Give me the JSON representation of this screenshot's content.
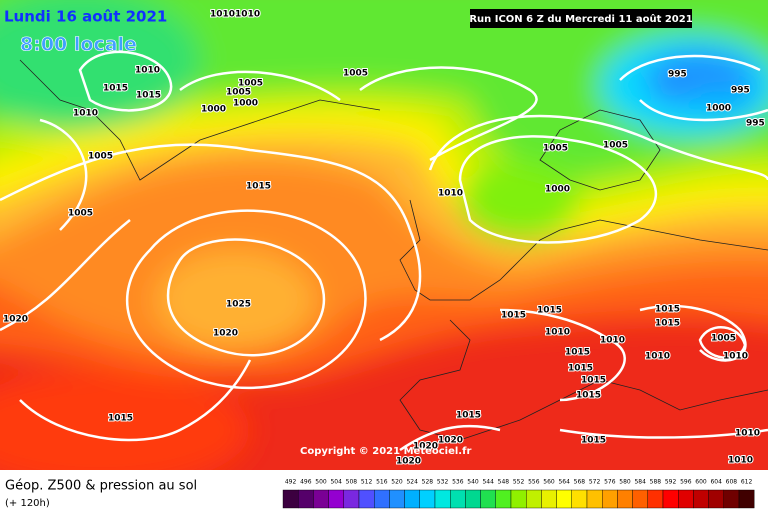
{
  "header": {
    "date": "Lundi 16 août 2021",
    "time": "8:00 locale",
    "run": "Run ICON 6 Z du Mercredi 11 août 2021"
  },
  "copyright": "Copyright © 2021 Meteociel.fr",
  "footer": {
    "title": "Géop. Z500 & pression au sol",
    "lead": "(+ 120h)"
  },
  "isobar_labels": [
    "10101010",
    "1010",
    "1015",
    "1015",
    "1005",
    "1005",
    "1000",
    "1000",
    "1005",
    "1010",
    "1005",
    "1005",
    "1015",
    "1010",
    "1025",
    "1020",
    "1020",
    "1015",
    "995",
    "995",
    "1000",
    "995",
    "1005",
    "1005",
    "1000",
    "1015",
    "1015",
    "1010",
    "1015",
    "1015",
    "1015",
    "1015",
    "1010",
    "1010",
    "1015",
    "1015",
    "1005",
    "1010",
    "1015",
    "1015",
    "1020",
    "1020",
    "1020",
    "1010",
    "1010"
  ],
  "color_scale": {
    "values": [
      492,
      496,
      500,
      504,
      508,
      512,
      516,
      520,
      524,
      528,
      532,
      536,
      540,
      544,
      548,
      552,
      556,
      560,
      564,
      568,
      572,
      576,
      580,
      584,
      588,
      592,
      596,
      600,
      604,
      608,
      612
    ],
    "colors": [
      "#3c0040",
      "#55006a",
      "#7a0095",
      "#9400d0",
      "#7a28e0",
      "#5050ff",
      "#3070ff",
      "#2090ff",
      "#00b0ff",
      "#00d0ff",
      "#00e8e0",
      "#00e0b0",
      "#00d890",
      "#20e050",
      "#50f020",
      "#90f000",
      "#c0f000",
      "#e8f000",
      "#ffff00",
      "#ffe000",
      "#ffc000",
      "#ffa000",
      "#ff8000",
      "#ff6000",
      "#ff3000",
      "#ff0000",
      "#e00000",
      "#c00000",
      "#a00000",
      "#700000",
      "#400000"
    ]
  }
}
